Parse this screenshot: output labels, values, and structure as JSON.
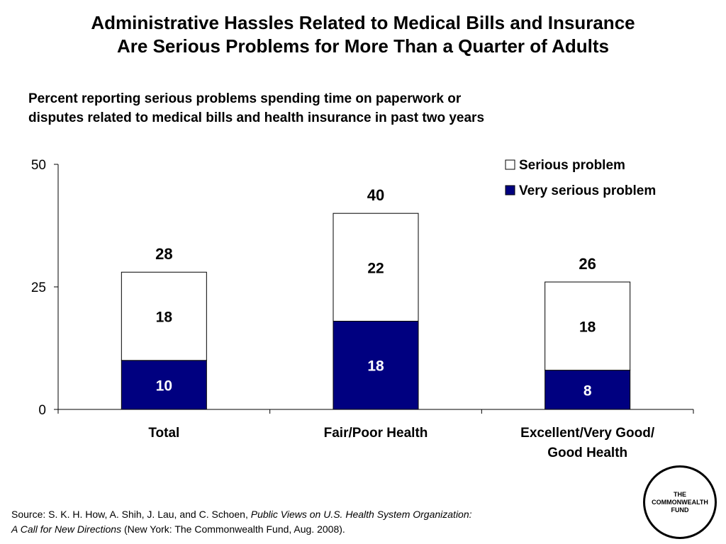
{
  "title_lines": [
    "Administrative Hassles Related to Medical Bills and Insurance",
    "Are Serious Problems for More Than a Quarter of Adults"
  ],
  "subtitle_lines": [
    "Percent reporting serious problems spending time on paperwork or",
    "disputes related to medical bills and health insurance in past two years"
  ],
  "source": {
    "prefix": "Source: S. K. H. How, A. Shih, J. Lau, and C. Schoen, ",
    "italic1": "Public Views on U.S. Health System Organization:",
    "italic2": "A Call for New Directions",
    "suffix": " (New York: The Commonwealth Fund, Aug. 2008)."
  },
  "logo": {
    "lines": [
      "THE",
      "COMMONWEALTH",
      "FUND"
    ]
  },
  "chart_data": {
    "type": "bar",
    "stacked": true,
    "categories": [
      [
        "Total"
      ],
      [
        "Fair/Poor Health"
      ],
      [
        "Excellent/Very Good/",
        "Good Health"
      ]
    ],
    "series": [
      {
        "name": "Very serious problem",
        "values": [
          10,
          18,
          8
        ],
        "color": "#000080",
        "label_color": "#ffffff"
      },
      {
        "name": "Serious problem",
        "values": [
          18,
          22,
          18
        ],
        "color": "#ffffff",
        "label_color": "#000000"
      }
    ],
    "totals": [
      28,
      40,
      26
    ],
    "ylim": [
      0,
      50
    ],
    "yticks": [
      0,
      25,
      50
    ],
    "xlabel": "",
    "ylabel": "",
    "grid": false,
    "legend_position": "top-right",
    "legend_order": [
      "Serious problem",
      "Very serious problem"
    ]
  }
}
